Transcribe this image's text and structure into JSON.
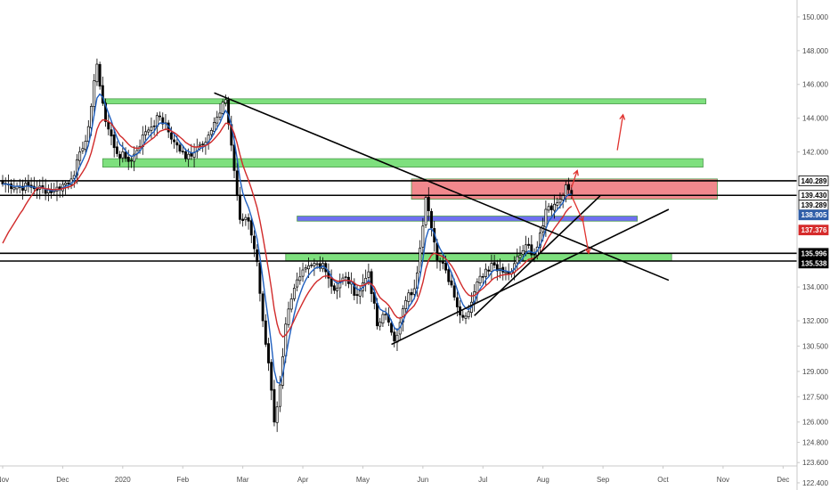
{
  "chart_data": {
    "type": "candlestick",
    "grid": false,
    "y_axis": {
      "side": "right",
      "range": [
        123.4,
        151.0
      ],
      "ticks": [
        "150.000",
        "148.000",
        "146.000",
        "144.000",
        "142.000",
        "140.289",
        "139.430",
        "139.289",
        "138.905",
        "137.376",
        "135.996",
        "135.538",
        "134.000",
        "132.000",
        "130.500",
        "129.000",
        "127.500",
        "126.000",
        "124.800",
        "123.600",
        "122.400"
      ],
      "tick_values": [
        150.0,
        148.0,
        146.0,
        144.0,
        142.0,
        134.0,
        132.0,
        130.5,
        129.0,
        127.5,
        126.0,
        124.8,
        123.6,
        122.4
      ]
    },
    "x_axis": {
      "ticks": [
        "Nov",
        "Dec",
        "2020",
        "Feb",
        "Mar",
        "Apr",
        "May",
        "Jun",
        "Jul",
        "Aug",
        "Sep",
        "Oct",
        "Nov",
        "Dec"
      ],
      "tick_bar_index": [
        0,
        21,
        42,
        63,
        84,
        105,
        126,
        147,
        168,
        189,
        210,
        231,
        252,
        273
      ]
    },
    "price_key_points": [
      [
        0,
        140.1
      ],
      [
        10,
        139.9
      ],
      [
        18,
        139.7
      ],
      [
        24,
        140.4
      ],
      [
        28,
        142.2
      ],
      [
        30,
        143.5
      ],
      [
        33,
        147.2
      ],
      [
        36,
        143.8
      ],
      [
        40,
        141.9
      ],
      [
        45,
        141.5
      ],
      [
        50,
        143.2
      ],
      [
        55,
        144.1
      ],
      [
        60,
        142.6
      ],
      [
        64,
        141.6
      ],
      [
        68,
        142.3
      ],
      [
        72,
        143.0
      ],
      [
        76,
        144.3
      ],
      [
        78,
        145.1
      ],
      [
        80,
        142.4
      ],
      [
        83,
        138.0
      ],
      [
        86,
        137.9
      ],
      [
        89,
        135.5
      ],
      [
        91,
        132.0
      ],
      [
        93,
        129.5
      ],
      [
        95,
        126.0
      ],
      [
        97,
        128.2
      ],
      [
        99,
        131.8
      ],
      [
        101,
        133.3
      ],
      [
        104,
        134.6
      ],
      [
        108,
        135.3
      ],
      [
        112,
        135.4
      ],
      [
        116,
        133.8
      ],
      [
        120,
        134.6
      ],
      [
        124,
        133.5
      ],
      [
        128,
        134.9
      ],
      [
        131,
        131.7
      ],
      [
        134,
        132.4
      ],
      [
        137,
        130.8
      ],
      [
        139,
        131.9
      ],
      [
        141,
        133.2
      ],
      [
        144,
        133.9
      ],
      [
        146,
        136.3
      ],
      [
        148,
        139.3
      ],
      [
        150,
        137.5
      ],
      [
        152,
        135.6
      ],
      [
        155,
        135.0
      ],
      [
        158,
        133.4
      ],
      [
        161,
        132.2
      ],
      [
        164,
        133.1
      ],
      [
        166,
        134.3
      ],
      [
        168,
        134.6
      ],
      [
        171,
        135.4
      ],
      [
        174,
        135.1
      ],
      [
        177,
        134.8
      ],
      [
        180,
        135.8
      ],
      [
        183,
        136.5
      ],
      [
        186,
        135.9
      ],
      [
        188,
        137.2
      ],
      [
        190,
        138.6
      ],
      [
        193,
        138.9
      ],
      [
        195,
        139.2
      ],
      [
        197,
        140.05
      ],
      [
        199,
        139.5
      ]
    ],
    "overlays": [
      {
        "kind": "zone",
        "label": "green zone",
        "color": "#7ee07e",
        "x": [
          35,
          246
        ],
        "y": [
          145.15,
          144.85
        ]
      },
      {
        "kind": "zone",
        "label": "green zone",
        "color": "#7ee07e",
        "x": [
          35,
          245
        ],
        "y": [
          141.6,
          141.1
        ]
      },
      {
        "kind": "zone",
        "label": "red zone",
        "color": "#f1888d",
        "x": [
          143,
          250
        ],
        "y": [
          140.4,
          139.2
        ]
      },
      {
        "kind": "zone",
        "label": "blue zone",
        "color": "#6f6ff0",
        "x": [
          103,
          222
        ],
        "y": [
          138.2,
          137.9
        ]
      },
      {
        "kind": "zone",
        "label": "green zone",
        "color": "#7ee07e",
        "x": [
          99,
          234
        ],
        "y": [
          136.0,
          135.55
        ]
      },
      {
        "kind": "hline",
        "value": 140.289,
        "x": [
          0,
          276
        ]
      },
      {
        "kind": "hline",
        "value": 139.43,
        "x": [
          0,
          276
        ]
      },
      {
        "kind": "hline",
        "value": 135.996,
        "x": [
          0,
          276
        ]
      },
      {
        "kind": "hline",
        "value": 135.538,
        "x": [
          0,
          276
        ]
      },
      {
        "kind": "trendline",
        "from": [
          74,
          145.5
        ],
        "to": [
          233,
          134.4
        ]
      },
      {
        "kind": "trendline",
        "from": [
          136,
          130.6
        ],
        "to": [
          233,
          138.6
        ]
      },
      {
        "kind": "trendline",
        "from": [
          165,
          132.3
        ],
        "to": [
          209,
          139.4
        ]
      }
    ],
    "price_badges": [
      {
        "value": "140.289",
        "price": 140.289,
        "bg": "#ffffff",
        "fg": "#000000",
        "border": "#000000"
      },
      {
        "value": "139.430",
        "price": 139.43,
        "bg": "#ffffff",
        "fg": "#000000",
        "border": "#000000"
      },
      {
        "value": "139.289",
        "price": 139.289,
        "bg": "#ffffff",
        "fg": "#000000",
        "border": "#000000"
      },
      {
        "value": "138.905",
        "price": 138.905,
        "bg": "#2f5ea8",
        "fg": "#ffffff",
        "border": "#2f5ea8"
      },
      {
        "value": "137.376",
        "price": 137.376,
        "bg": "#d62a2a",
        "fg": "#ffffff",
        "border": "#d62a2a"
      },
      {
        "value": "135.996",
        "price": 135.996,
        "bg": "#000000",
        "fg": "#ffffff",
        "border": "#000000"
      },
      {
        "value": "135.538",
        "price": 135.538,
        "bg": "#000000",
        "fg": "#ffffff",
        "border": "#000000"
      }
    ],
    "colors": {
      "candle": "#000000",
      "fast_ma": "#1f5fbf",
      "slow_ma": "#d12a2a",
      "trendline": "#000000",
      "arrow": "#e0322e",
      "axis_line": "#c8c8c8"
    }
  }
}
